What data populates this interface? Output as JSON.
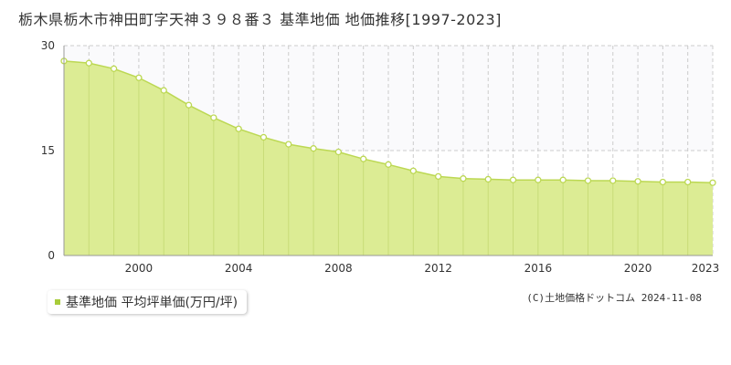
{
  "header": {
    "title": "栃木県栃木市神田町字天神３９８番３ 基準地価 地価推移[1997-2023]"
  },
  "legend": {
    "label": "基準地価 平均坪単価(万円/坪)",
    "color": "#a8cc3a"
  },
  "footer": {
    "copyright": "(C)土地価格ドットコム 2024-11-08"
  },
  "colors": {
    "area_fill": "#dcec94",
    "line": "#bcd853",
    "marker_stroke": "#bcd853",
    "marker_fill": "#ffffff",
    "grid": "#cccccc",
    "upper_band": "#fafafc"
  },
  "chart_data": {
    "type": "area",
    "title": "栃木県栃木市神田町字天神３９８番３ 基準地価 地価推移[1997-2023]",
    "x": [
      1997,
      1998,
      1999,
      2000,
      2001,
      2002,
      2003,
      2004,
      2005,
      2006,
      2007,
      2008,
      2009,
      2010,
      2011,
      2012,
      2013,
      2014,
      2015,
      2016,
      2017,
      2018,
      2019,
      2020,
      2021,
      2022,
      2023
    ],
    "series": [
      {
        "name": "基準地価 平均坪単価(万円/坪)",
        "values": [
          27.8,
          27.5,
          26.7,
          25.4,
          23.6,
          21.5,
          19.7,
          18.1,
          16.9,
          15.9,
          15.3,
          14.8,
          13.8,
          13.0,
          12.1,
          11.3,
          11.0,
          10.9,
          10.8,
          10.8,
          10.8,
          10.7,
          10.7,
          10.6,
          10.5,
          10.5,
          10.4
        ]
      }
    ],
    "x_tick_labels": [
      "2000",
      "2004",
      "2008",
      "2012",
      "2016",
      "2020",
      "2023"
    ],
    "x_tick_values": [
      2000,
      2004,
      2008,
      2012,
      2016,
      2020,
      2023
    ],
    "y_tick_labels": [
      "0",
      "15",
      "30"
    ],
    "y_tick_values": [
      0,
      15,
      30
    ],
    "xlim": [
      1997,
      2023
    ],
    "ylim": [
      0,
      30
    ],
    "xlabel": "",
    "ylabel": "",
    "grid": true,
    "legend_position": "bottom-left"
  }
}
